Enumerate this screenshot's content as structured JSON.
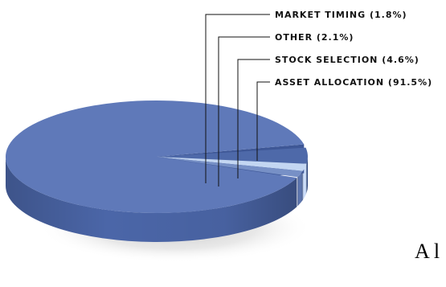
{
  "chart_data": {
    "type": "pie",
    "style": "3d",
    "categories": [
      "Asset Allocation",
      "Stock Selection",
      "Other",
      "Market Timing"
    ],
    "values": [
      91.5,
      4.6,
      2.1,
      1.8
    ],
    "labels": [
      "ASSET ALLOCATION (91.5%)",
      "STOCK SELECTION (4.6%)",
      "OTHER (2.1%)",
      "MARKET TIMING (1.8%)"
    ],
    "colors": {
      "top": [
        "#5f79b9",
        "#4e69a9",
        "#c3d6f2",
        "#7790c6"
      ],
      "side": [
        "#4b66a8",
        "#2f4a86",
        "#d0e2ff",
        "#5f78b2"
      ]
    },
    "legend_placement": "top-right, leader lines"
  },
  "footer_fragment": "A l"
}
